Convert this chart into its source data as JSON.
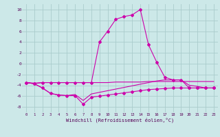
{
  "xlabel": "Windchill (Refroidissement éolien,°C)",
  "background_color": "#cce8e8",
  "grid_color": "#aacccc",
  "line_color": "#cc00aa",
  "xlim": [
    -0.5,
    23.5
  ],
  "ylim": [
    -9,
    11
  ],
  "xticks": [
    0,
    1,
    2,
    3,
    4,
    5,
    6,
    7,
    8,
    9,
    10,
    11,
    12,
    13,
    14,
    15,
    16,
    17,
    18,
    19,
    20,
    21,
    22,
    23
  ],
  "yticks": [
    -8,
    -6,
    -4,
    -2,
    0,
    2,
    4,
    6,
    8,
    10
  ],
  "series1_x": [
    0,
    1,
    2,
    3,
    4,
    5,
    6,
    7,
    8,
    9,
    10,
    11,
    12,
    13,
    14,
    15,
    16,
    17,
    18,
    19,
    20,
    21,
    22,
    23
  ],
  "series1_y": [
    -3.5,
    -3.6,
    -3.5,
    -3.5,
    -3.5,
    -3.5,
    -3.5,
    -3.5,
    -3.5,
    -3.5,
    -3.5,
    -3.4,
    -3.4,
    -3.4,
    -3.4,
    -3.3,
    -3.3,
    -3.3,
    -3.3,
    -3.3,
    -3.3,
    -3.3,
    -3.3,
    -3.3
  ],
  "series2_x": [
    0,
    1,
    2,
    3,
    4,
    5,
    6,
    7,
    8,
    9,
    10,
    11,
    12,
    13,
    14,
    15,
    16,
    17,
    18,
    19,
    20,
    21,
    22,
    23
  ],
  "series2_y": [
    -3.5,
    -3.7,
    -4.5,
    -5.5,
    -5.8,
    -5.9,
    -5.9,
    -7.5,
    -6.2,
    -6.0,
    -5.8,
    -5.6,
    -5.4,
    -5.2,
    -5.0,
    -4.8,
    -4.7,
    -4.6,
    -4.5,
    -4.5,
    -4.5,
    -4.5,
    -4.5,
    -4.5
  ],
  "series3_x": [
    0,
    1,
    2,
    3,
    4,
    5,
    6,
    7,
    8,
    9,
    10,
    11,
    12,
    13,
    14,
    15,
    16,
    17,
    18,
    19,
    20,
    21,
    22,
    23
  ],
  "series3_y": [
    -3.5,
    -3.7,
    -4.5,
    -5.5,
    -5.8,
    -5.9,
    -5.7,
    -6.8,
    -5.6,
    -5.3,
    -5.0,
    -4.7,
    -4.4,
    -4.1,
    -3.8,
    -3.5,
    -3.2,
    -3.0,
    -3.0,
    -3.0,
    -4.0,
    -4.2,
    -4.5,
    -4.5
  ],
  "series4_x": [
    0,
    1,
    2,
    3,
    4,
    5,
    6,
    7,
    8,
    9,
    10,
    11,
    12,
    13,
    14,
    15,
    16,
    17,
    18,
    19,
    20,
    21,
    22,
    23
  ],
  "series4_y": [
    -3.5,
    -3.7,
    -3.5,
    -3.5,
    -3.5,
    -3.5,
    -3.5,
    -3.5,
    -3.5,
    4.0,
    6.0,
    8.2,
    8.7,
    9.0,
    10.0,
    3.5,
    0.3,
    -2.5,
    -3.0,
    -3.0,
    -4.5,
    -4.5,
    -4.5,
    -4.5
  ]
}
